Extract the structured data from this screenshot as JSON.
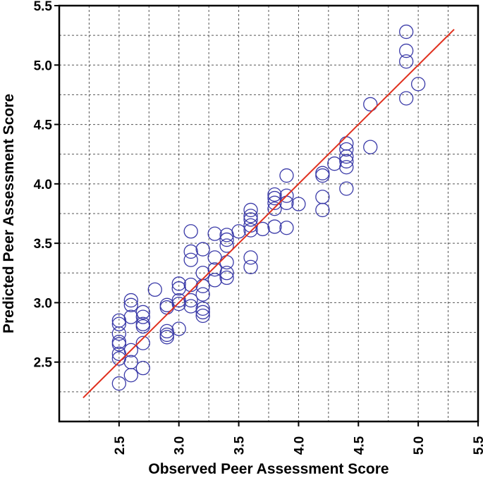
{
  "chart_data": {
    "type": "scatter",
    "title": "",
    "xlabel": "Observed Peer Assessment Score",
    "ylabel": "Predicted Peer Assessment Score",
    "xlim": [
      2.0,
      5.5
    ],
    "ylim": [
      2.0,
      5.5
    ],
    "x_ticks": [
      "2.5",
      "3.0",
      "3.5",
      "4.0",
      "4.5",
      "5.0",
      "5.5"
    ],
    "y_ticks": [
      "2.5",
      "3.0",
      "3.5",
      "4.0",
      "4.5",
      "5.0",
      "5.5"
    ],
    "grid": true,
    "legend": "none",
    "marker_color": "#3a3aa8",
    "fit_line_color": "#e0301e",
    "fit_line": {
      "x": [
        2.2,
        5.3
      ],
      "y": [
        2.2,
        5.3
      ]
    },
    "points": [
      {
        "x": 2.5,
        "y": 2.85
      },
      {
        "x": 2.5,
        "y": 2.82
      },
      {
        "x": 2.5,
        "y": 2.74
      },
      {
        "x": 2.5,
        "y": 2.67
      },
      {
        "x": 2.5,
        "y": 2.65
      },
      {
        "x": 2.5,
        "y": 2.57
      },
      {
        "x": 2.5,
        "y": 2.53
      },
      {
        "x": 2.5,
        "y": 2.32
      },
      {
        "x": 2.6,
        "y": 3.02
      },
      {
        "x": 2.6,
        "y": 2.98
      },
      {
        "x": 2.6,
        "y": 2.88
      },
      {
        "x": 2.6,
        "y": 2.6
      },
      {
        "x": 2.6,
        "y": 2.5
      },
      {
        "x": 2.6,
        "y": 2.39
      },
      {
        "x": 2.7,
        "y": 2.92
      },
      {
        "x": 2.7,
        "y": 2.88
      },
      {
        "x": 2.7,
        "y": 2.82
      },
      {
        "x": 2.7,
        "y": 2.8
      },
      {
        "x": 2.7,
        "y": 2.66
      },
      {
        "x": 2.7,
        "y": 2.45
      },
      {
        "x": 2.8,
        "y": 3.11
      },
      {
        "x": 2.9,
        "y": 2.98
      },
      {
        "x": 2.9,
        "y": 2.96
      },
      {
        "x": 2.9,
        "y": 2.76
      },
      {
        "x": 2.9,
        "y": 2.73
      },
      {
        "x": 2.9,
        "y": 2.71
      },
      {
        "x": 3.0,
        "y": 3.16
      },
      {
        "x": 3.0,
        "y": 3.12
      },
      {
        "x": 3.0,
        "y": 3.02
      },
      {
        "x": 3.0,
        "y": 2.99
      },
      {
        "x": 3.0,
        "y": 2.78
      },
      {
        "x": 3.1,
        "y": 3.6
      },
      {
        "x": 3.1,
        "y": 3.43
      },
      {
        "x": 3.1,
        "y": 3.36
      },
      {
        "x": 3.1,
        "y": 3.15
      },
      {
        "x": 3.1,
        "y": 3.02
      },
      {
        "x": 3.1,
        "y": 2.97
      },
      {
        "x": 3.2,
        "y": 3.45
      },
      {
        "x": 3.2,
        "y": 3.25
      },
      {
        "x": 3.2,
        "y": 3.14
      },
      {
        "x": 3.2,
        "y": 3.07
      },
      {
        "x": 3.2,
        "y": 2.95
      },
      {
        "x": 3.2,
        "y": 2.92
      },
      {
        "x": 3.2,
        "y": 2.89
      },
      {
        "x": 3.3,
        "y": 3.58
      },
      {
        "x": 3.3,
        "y": 3.38
      },
      {
        "x": 3.3,
        "y": 3.28
      },
      {
        "x": 3.3,
        "y": 3.19
      },
      {
        "x": 3.4,
        "y": 3.57
      },
      {
        "x": 3.4,
        "y": 3.53
      },
      {
        "x": 3.4,
        "y": 3.48
      },
      {
        "x": 3.4,
        "y": 3.34
      },
      {
        "x": 3.4,
        "y": 3.25
      },
      {
        "x": 3.4,
        "y": 3.21
      },
      {
        "x": 3.5,
        "y": 3.6
      },
      {
        "x": 3.6,
        "y": 3.78
      },
      {
        "x": 3.6,
        "y": 3.73
      },
      {
        "x": 3.6,
        "y": 3.7
      },
      {
        "x": 3.6,
        "y": 3.65
      },
      {
        "x": 3.6,
        "y": 3.61
      },
      {
        "x": 3.6,
        "y": 3.38
      },
      {
        "x": 3.6,
        "y": 3.3
      },
      {
        "x": 3.7,
        "y": 3.62
      },
      {
        "x": 3.8,
        "y": 3.91
      },
      {
        "x": 3.8,
        "y": 3.88
      },
      {
        "x": 3.8,
        "y": 3.84
      },
      {
        "x": 3.8,
        "y": 3.79
      },
      {
        "x": 3.8,
        "y": 3.64
      },
      {
        "x": 3.9,
        "y": 4.07
      },
      {
        "x": 3.9,
        "y": 3.9
      },
      {
        "x": 3.9,
        "y": 3.84
      },
      {
        "x": 3.9,
        "y": 3.63
      },
      {
        "x": 4.0,
        "y": 3.83
      },
      {
        "x": 4.2,
        "y": 4.09
      },
      {
        "x": 4.2,
        "y": 4.07
      },
      {
        "x": 4.2,
        "y": 3.89
      },
      {
        "x": 4.2,
        "y": 3.78
      },
      {
        "x": 4.3,
        "y": 4.17
      },
      {
        "x": 4.4,
        "y": 4.34
      },
      {
        "x": 4.4,
        "y": 4.29
      },
      {
        "x": 4.4,
        "y": 4.23
      },
      {
        "x": 4.4,
        "y": 4.19
      },
      {
        "x": 4.4,
        "y": 4.14
      },
      {
        "x": 4.4,
        "y": 3.96
      },
      {
        "x": 4.6,
        "y": 4.67
      },
      {
        "x": 4.6,
        "y": 4.31
      },
      {
        "x": 4.9,
        "y": 5.28
      },
      {
        "x": 4.9,
        "y": 5.12
      },
      {
        "x": 4.9,
        "y": 5.03
      },
      {
        "x": 4.9,
        "y": 4.72
      },
      {
        "x": 5.0,
        "y": 4.84
      }
    ]
  }
}
